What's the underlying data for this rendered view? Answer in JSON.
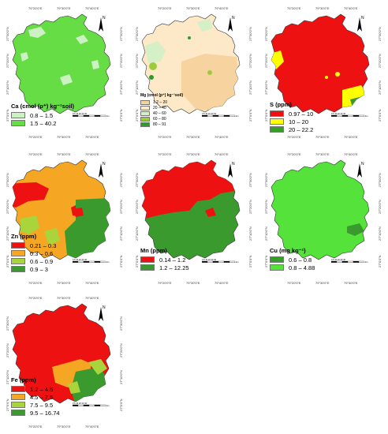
{
  "graticule": {
    "lon_labels": [
      "79°20'0\"E",
      "79°30'0\"E",
      "79°40'0\"E"
    ],
    "lat_labels": [
      "27°30'0\"N",
      "27°20'0\"N",
      "27°10'0\"N",
      "27°0'0\"N"
    ]
  },
  "north_label": "N",
  "scale_ticks": "0  5  10    20    30    40",
  "scale_unit": "km",
  "colors": {
    "light_green": "#ccf2c4",
    "lime": "#66dd44",
    "bright_green": "#55e23a",
    "dark_green": "#3a9a2e",
    "red": "#ee1111",
    "orange": "#f5a623",
    "yellow": "#ffff00",
    "yellow_green": "#a9d43c",
    "peach": "#f7d3a0",
    "cream": "#fde9c8",
    "pale_green": "#d5efc6",
    "olive_green": "#9ccc3e",
    "mid_green": "#2e9a2e"
  },
  "panels": [
    {
      "id": "ca",
      "title": "Ca (cmol (p⁺) kg⁻¹soil)",
      "classes": [
        {
          "label": "0.8 – 1.5",
          "color": "#ccf2c4"
        },
        {
          "label": "1.5 – 40.2",
          "color": "#66dd44"
        }
      ]
    },
    {
      "id": "mg",
      "title": "Mg (cmol (p⁺) kg⁻¹soil)",
      "classes": [
        {
          "label": "1.2 – 20",
          "color": "#f7d3a0"
        },
        {
          "label": "20 – 40",
          "color": "#fde9c8"
        },
        {
          "label": "40 – 60",
          "color": "#d5efc6"
        },
        {
          "label": "60 – 80",
          "color": "#9ccc3e"
        },
        {
          "label": "80 – 91",
          "color": "#2e9a2e"
        }
      ]
    },
    {
      "id": "s",
      "title": "S  (ppm)",
      "classes": [
        {
          "label": "0.97 – 10",
          "color": "#ee1111"
        },
        {
          "label": "10 – 20",
          "color": "#ffff00"
        },
        {
          "label": "20 – 22.2",
          "color": "#3a9a2e"
        }
      ]
    },
    {
      "id": "zn",
      "title": "Zn   (ppm)",
      "classes": [
        {
          "label": "0.21 – 0.3",
          "color": "#ee1111"
        },
        {
          "label": "0.3 – 0.6",
          "color": "#f5a623"
        },
        {
          "label": "0.6 – 0.9",
          "color": "#a9d43c"
        },
        {
          "label": "0.9 – 3",
          "color": "#3a9a2e"
        }
      ]
    },
    {
      "id": "mn",
      "title": "Mn  (ppm)",
      "classes": [
        {
          "label": "0.14 – 1.2",
          "color": "#ee1111"
        },
        {
          "label": "1.2 – 12.25",
          "color": "#3a9a2e"
        }
      ]
    },
    {
      "id": "cu",
      "title": "Cu  (mg kg⁻¹)",
      "classes": [
        {
          "label": "0.6 – 0.8",
          "color": "#3a9a2e"
        },
        {
          "label": "0.8 – 4.88",
          "color": "#55e23a"
        }
      ]
    },
    {
      "id": "fe",
      "title": "Fe  (ppm)",
      "classes": [
        {
          "label": "1.2 – 4.5",
          "color": "#ee1111"
        },
        {
          "label": "4.5 – 7.5",
          "color": "#f5a623"
        },
        {
          "label": "7.5 – 9.5",
          "color": "#a9d43c"
        },
        {
          "label": "9.5 – 16.74",
          "color": "#3a9a2e"
        }
      ]
    }
  ]
}
